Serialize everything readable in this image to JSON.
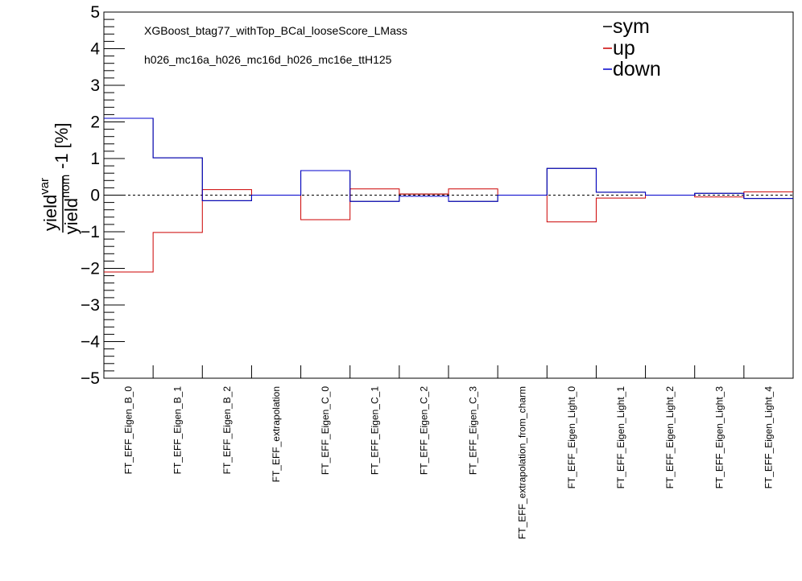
{
  "chart_data": {
    "type": "line",
    "annotations": [
      "XGBoost_btag77_withTop_BCal_looseScore_LMass",
      "h026_mc16a_h026_mc16d_h026_mc16e_ttH125"
    ],
    "ylabel": {
      "num_base": "yield",
      "num_sup": "var",
      "den_base": "yield",
      "den_sup": "nom",
      "suffix": "-1 [%]"
    },
    "ylim": [
      -5,
      5
    ],
    "y_ticks": [
      -5,
      -4,
      -3,
      -2,
      -1,
      0,
      1,
      2,
      3,
      4,
      5
    ],
    "y_tick_labels": [
      "−5",
      "−4",
      "−3",
      "−2",
      "−1",
      "0",
      "1",
      "2",
      "3",
      "4",
      "5"
    ],
    "categories": [
      "FT_EFF_Eigen_B_0",
      "FT_EFF_Eigen_B_1",
      "FT_EFF_Eigen_B_2",
      "FT_EFF_extrapolation",
      "FT_EFF_Eigen_C_0",
      "FT_EFF_Eigen_C_1",
      "FT_EFF_Eigen_C_2",
      "FT_EFF_Eigen_C_3",
      "FT_EFF_extrapolation_from_charm",
      "FT_EFF_Eigen_Light_0",
      "FT_EFF_Eigen_Light_1",
      "FT_EFF_Eigen_Light_2",
      "FT_EFF_Eigen_Light_3",
      "FT_EFF_Eigen_Light_4"
    ],
    "series": [
      {
        "name": "sym",
        "color": "#000000",
        "values": [
          2.1,
          1.02,
          -0.15,
          0.0,
          0.67,
          -0.17,
          0.03,
          -0.17,
          0.0,
          0.73,
          0.08,
          0.0,
          0.05,
          -0.09
        ]
      },
      {
        "name": "up",
        "color": "#cc0000",
        "values": [
          -2.1,
          -1.02,
          0.15,
          0.0,
          -0.67,
          0.17,
          0.03,
          0.17,
          0.0,
          -0.73,
          -0.08,
          0.0,
          -0.05,
          0.09
        ]
      },
      {
        "name": "down",
        "color": "#0000cc",
        "values": [
          2.1,
          1.02,
          -0.15,
          0.0,
          0.67,
          -0.17,
          -0.03,
          -0.17,
          0.0,
          0.73,
          0.08,
          0.0,
          0.05,
          -0.09
        ]
      }
    ],
    "zero_line": "dashed",
    "legend_position": "top-right"
  }
}
